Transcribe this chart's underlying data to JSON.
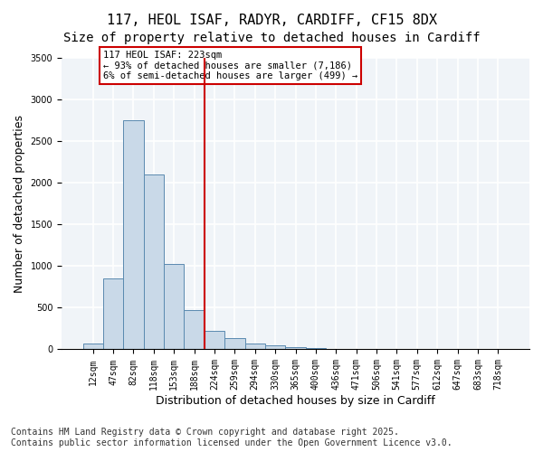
{
  "title_line1": "117, HEOL ISAF, RADYR, CARDIFF, CF15 8DX",
  "title_line2": "Size of property relative to detached houses in Cardiff",
  "xlabel": "Distribution of detached houses by size in Cardiff",
  "ylabel": "Number of detached properties",
  "categories": [
    "12sqm",
    "47sqm",
    "82sqm",
    "118sqm",
    "153sqm",
    "188sqm",
    "224sqm",
    "259sqm",
    "294sqm",
    "330sqm",
    "365sqm",
    "400sqm",
    "436sqm",
    "471sqm",
    "506sqm",
    "541sqm",
    "577sqm",
    "612sqm",
    "647sqm",
    "683sqm",
    "718sqm"
  ],
  "values": [
    75,
    850,
    2750,
    2100,
    1030,
    470,
    220,
    140,
    75,
    45,
    25,
    12,
    5,
    3,
    2,
    1,
    1,
    0,
    0,
    0,
    0
  ],
  "bar_color": "#c9d9e8",
  "bar_edge_color": "#5a8ab0",
  "vline_x": 6,
  "vline_color": "#cc0000",
  "annotation_text": "117 HEOL ISAF: 223sqm\n← 93% of detached houses are smaller (7,186)\n6% of semi-detached houses are larger (499) →",
  "annotation_box_color": "#cc0000",
  "ylim": [
    0,
    3500
  ],
  "yticks": [
    0,
    500,
    1000,
    1500,
    2000,
    2500,
    3000,
    3500
  ],
  "background_color": "#f0f4f8",
  "grid_color": "#ffffff",
  "footer_line1": "Contains HM Land Registry data © Crown copyright and database right 2025.",
  "footer_line2": "Contains public sector information licensed under the Open Government Licence v3.0.",
  "title_fontsize": 11,
  "subtitle_fontsize": 10,
  "tick_fontsize": 7,
  "label_fontsize": 9,
  "footer_fontsize": 7
}
